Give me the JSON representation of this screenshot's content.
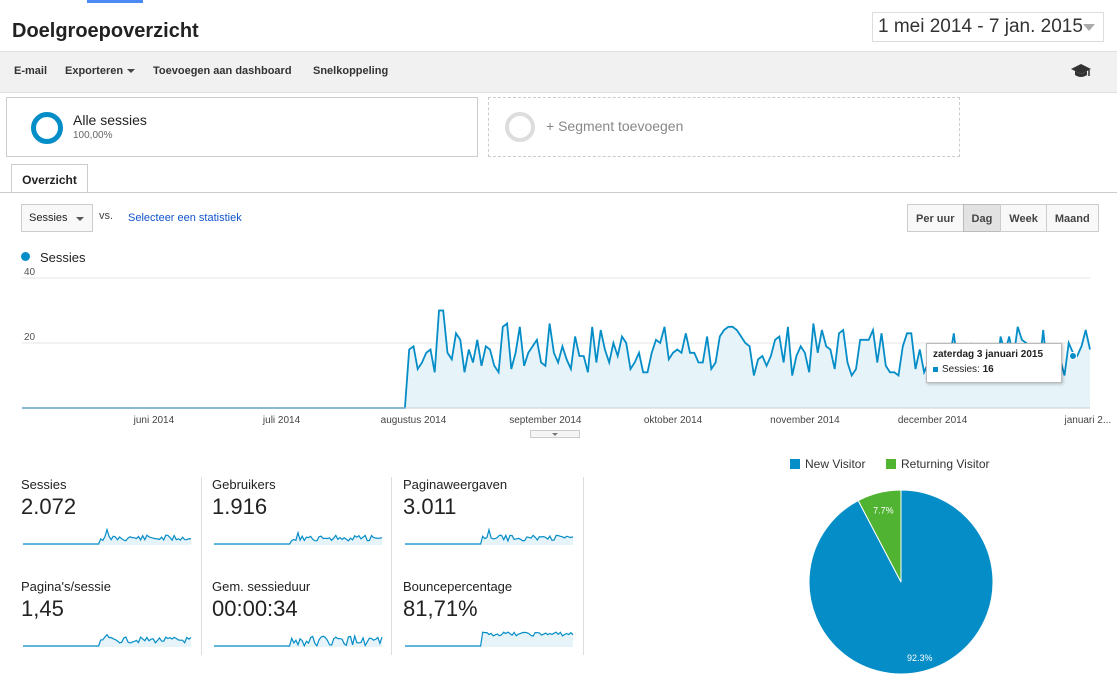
{
  "header": {
    "title": "Doelgroepoverzicht",
    "date_range": "1 mei 2014 - 7 jan. 2015"
  },
  "toolbar": {
    "email": "E-mail",
    "export": "Exporteren",
    "add_dashboard": "Toevoegen aan dashboard",
    "shortcut": "Snelkoppeling",
    "help_icon": "graduation-cap-icon"
  },
  "segments": {
    "active_label": "Alle sessies",
    "active_pct": "100,00%",
    "add_label": "+ Segment toevoegen"
  },
  "tabs": {
    "overview": "Overzicht"
  },
  "controls": {
    "metric_select": "Sessies",
    "vs": "vs.",
    "select_stat": "Selecteer een statistiek",
    "granularity": [
      "Per uur",
      "Dag",
      "Week",
      "Maand"
    ],
    "granularity_selected": "Dag"
  },
  "chart_data": [
    {
      "type": "area",
      "series": [
        {
          "name": "Sessies"
        }
      ],
      "y_ticks": [
        "40",
        "20"
      ],
      "ylim": [
        0,
        40
      ],
      "x_labels": [
        "juni 2014",
        "juli 2014",
        "augustus 2014",
        "september 2014",
        "oktober 2014",
        "november 2014",
        "december 2014",
        "januari 2..."
      ],
      "segments": [
        {
          "from_date": "2014-05-01",
          "to_date": "2014-07-30",
          "value": 0
        },
        {
          "from_date": "2014-07-31",
          "to_date": "2015-01-07",
          "approx_range": [
            7,
            31
          ]
        }
      ],
      "peak": 30,
      "tooltip": {
        "date": "zaterdag 3 januari 2015",
        "label": "Sessies:",
        "value": "16"
      },
      "color": "#058dc7"
    },
    {
      "type": "pie",
      "labels": [
        "New Visitor",
        "Returning Visitor"
      ],
      "values": [
        92.3,
        7.7
      ],
      "value_labels": [
        "92.3%",
        "7.7%"
      ],
      "colors": [
        "#058dc7",
        "#50b432"
      ]
    }
  ],
  "metrics": [
    {
      "label": "Sessies",
      "value": "2.072"
    },
    {
      "label": "Gebruikers",
      "value": "1.916"
    },
    {
      "label": "Paginaweergaven",
      "value": "3.011"
    },
    {
      "label": "Pagina's/sessie",
      "value": "1,45"
    },
    {
      "label": "Gem. sessieduur",
      "value": "00:00:34"
    },
    {
      "label": "Bouncepercentage",
      "value": "81,71%"
    }
  ]
}
